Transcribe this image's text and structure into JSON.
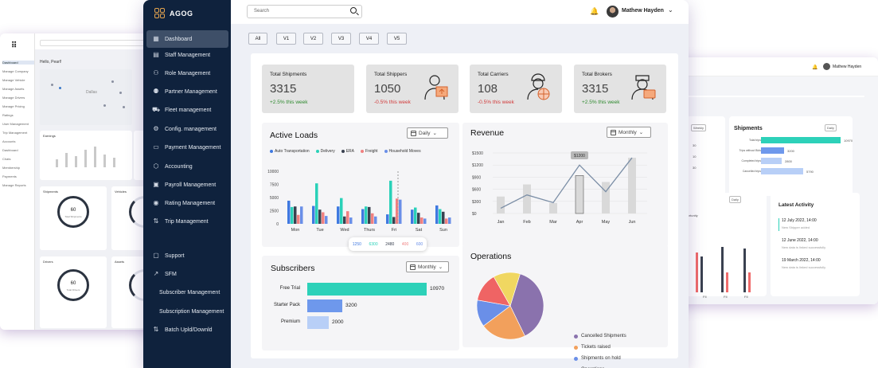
{
  "left_window": {
    "sidebar": [
      "Dashboard",
      "Manage Company",
      "Manage Vehicle",
      "Manage Assets",
      "Manage Drivers",
      "Manage Pricing",
      "Ratings",
      "User Management",
      "Trip Management",
      "Accounts",
      "Dashboard",
      "Chats",
      "Membership",
      "Payments",
      "Manage Reports"
    ],
    "greeting": "Hello, Pearl!",
    "map_city": "Dallas",
    "earnings_title": "Earnings",
    "shipments_title": "Shipments",
    "shipments_value": "60",
    "shipments_sub": "Total Shipments",
    "vehicles_title": "Vehicles",
    "drivers_title": "Drivers",
    "drivers_value": "60",
    "drivers_sub": "Total Drivers",
    "assets_title": "Assets"
  },
  "right_window": {
    "user": "Mathew Hayden",
    "weekly": "Weekly",
    "daily": "Daily",
    "left_values": [
      "30",
      "10",
      "30"
    ],
    "shipments": {
      "title": "Shipments",
      "select": "Daily",
      "rows": [
        {
          "label": "Total trips",
          "value": "10970"
        },
        {
          "label": "Trips without Bids",
          "value": "3200"
        },
        {
          "label": "Completed trips",
          "value": "2800"
        },
        {
          "label": "Cancelled trips",
          "value": "5790"
        }
      ]
    },
    "opportunity": "Opportunity",
    "bar_labels": [
      "FII",
      "FII",
      "FII"
    ],
    "latest_activity": {
      "title": "Latest Activity",
      "items": [
        {
          "date": "12 July 2022, 14:00",
          "text": "New Shipper added"
        },
        {
          "date": "12 June 2022, 14:00",
          "text": "New data is linked successfully"
        },
        {
          "date": "19 March 2022, 14:00",
          "text": "New data is linked successfully"
        }
      ]
    }
  },
  "main": {
    "brand": "AGOG",
    "nav": [
      {
        "label": "Dashboard",
        "icon": "dashboard-icon",
        "glyph": "▦",
        "active": true
      },
      {
        "label": "Staff Management",
        "icon": "staff-icon",
        "glyph": "▤"
      },
      {
        "label": "Role Management",
        "icon": "role-icon",
        "glyph": "⚇"
      },
      {
        "label": "Partner Management",
        "icon": "partner-icon",
        "glyph": "⚉"
      },
      {
        "label": "Fleet management",
        "icon": "fleet-icon",
        "glyph": "⛟"
      },
      {
        "label": "Config. management",
        "icon": "config-icon",
        "glyph": "⚙"
      },
      {
        "label": "Payment Management",
        "icon": "payment-icon",
        "glyph": "▭"
      },
      {
        "label": "Accounting",
        "icon": "accounting-icon",
        "glyph": "⬡"
      },
      {
        "label": "Payroll Management",
        "icon": "payroll-icon",
        "glyph": "▣"
      },
      {
        "label": "Rating Management",
        "icon": "rating-icon",
        "glyph": "◉"
      },
      {
        "label": "Trip Management",
        "icon": "trip-icon",
        "glyph": "⇅"
      },
      {
        "label": "Support",
        "icon": "support-icon",
        "glyph": "▢"
      },
      {
        "label": "SFM",
        "icon": "sfm-icon",
        "glyph": "↗"
      },
      {
        "label": "Subscriber Management",
        "icon": "",
        "glyph": ""
      },
      {
        "label": "Subscription Management",
        "icon": "",
        "glyph": ""
      },
      {
        "label": "Batch Upld/Downld",
        "icon": "batch-icon",
        "glyph": "⇅"
      }
    ],
    "search_placeholder": "Search",
    "user": "Mathew Hayden",
    "version_tabs": [
      "All",
      "V1",
      "V2",
      "V3",
      "V4",
      "V5"
    ],
    "stats": [
      {
        "label": "Total Shipments",
        "value": "3315",
        "change": "+2.5% this week",
        "dir": "up"
      },
      {
        "label": "Total Shippers",
        "value": "1050",
        "change": "-0.5% this week",
        "dir": "down",
        "icon": "shipper-icon"
      },
      {
        "label": "Total Carriers",
        "value": "108",
        "change": "-0.5% this week",
        "dir": "down",
        "icon": "carrier-icon"
      },
      {
        "label": "Total Brokers",
        "value": "3315",
        "change": "+2.5% this week",
        "dir": "up",
        "icon": "broker-icon"
      }
    ],
    "active_loads": {
      "title": "Active Loads",
      "select": "Daily",
      "tooltip": [
        "1250",
        "6300",
        "2480",
        "400",
        "600"
      ]
    },
    "revenue": {
      "title": "Revenue",
      "select": "Monthly"
    },
    "subscribers": {
      "title": "Subscribers",
      "select": "Monthly"
    },
    "operations": {
      "title": "Operations"
    }
  },
  "chart_data": [
    {
      "type": "bar",
      "title": "Active Loads",
      "categories": [
        "Mon",
        "Tue",
        "Wed",
        "Thurs",
        "Fri",
        "Sat",
        "Sun"
      ],
      "yticks": [
        "10000",
        "7500",
        "5000",
        "2500",
        "0"
      ],
      "ylim": [
        0,
        10000
      ],
      "series": [
        {
          "name": "Auto Transportation",
          "color": "#3f79e0",
          "values": [
            4400,
            3400,
            3300,
            2800,
            1800,
            2700,
            3500
          ]
        },
        {
          "name": "Delivery",
          "color": "#29d1b8",
          "values": [
            3200,
            7700,
            4900,
            3300,
            8200,
            3100,
            2800
          ]
        },
        {
          "name": "ERA",
          "color": "#3a4150",
          "values": [
            3300,
            2700,
            1400,
            3200,
            1300,
            2100,
            2300
          ]
        },
        {
          "name": "Freight",
          "color": "#f08080",
          "values": [
            1700,
            2200,
            2400,
            2000,
            4800,
            1200,
            1000
          ]
        },
        {
          "name": "Household Moves",
          "color": "#6a8fe8",
          "values": [
            3300,
            1500,
            1200,
            1400,
            4600,
            1000,
            1200
          ]
        }
      ]
    },
    {
      "type": "line",
      "title": "Revenue",
      "categories": [
        "Jan",
        "Feb",
        "Mar",
        "Apr",
        "May",
        "Jun"
      ],
      "yticks": [
        "$1500",
        "$1200",
        "$900",
        "$600",
        "$300",
        "$0"
      ],
      "ylim": [
        0,
        1500
      ],
      "bars": [
        420,
        720,
        260,
        940,
        780,
        1380
      ],
      "line": [
        130,
        460,
        270,
        1200,
        540,
        1380
      ],
      "annotation": {
        "x": "Apr",
        "label": "$1200"
      }
    },
    {
      "type": "bar",
      "orientation": "horizontal",
      "title": "Subscribers",
      "categories": [
        "Free Trial",
        "Starter Pack",
        "Premium"
      ],
      "values": [
        10970,
        3200,
        2000
      ],
      "colors": [
        "#2dd1b9",
        "#6e98ec",
        "#b8cff7"
      ]
    },
    {
      "type": "pie",
      "title": "Operations",
      "labels": [
        "Cancelled Shipments",
        "Tickets raised",
        "Shipments on hold",
        "Operations",
        "Operations"
      ],
      "colors": [
        "#8a72ad",
        "#f2a05c",
        "#6a8fe8",
        "#ef6464",
        "#f0d761"
      ],
      "values": [
        38,
        22,
        13,
        14,
        13
      ]
    }
  ]
}
